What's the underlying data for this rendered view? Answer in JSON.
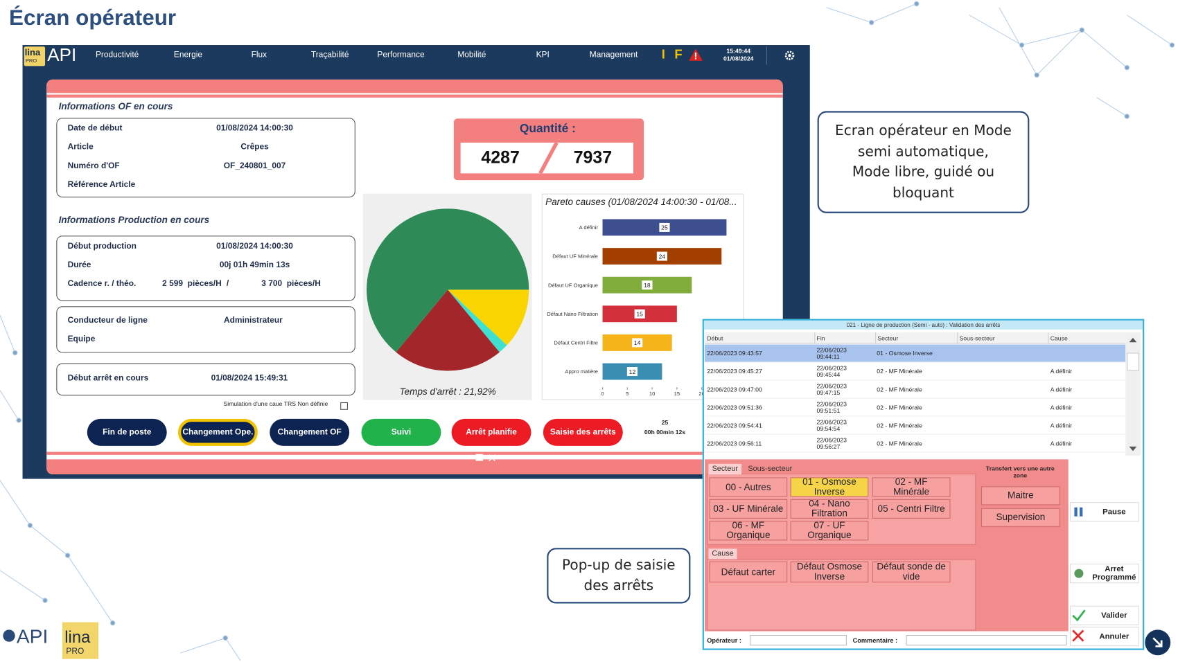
{
  "slide_title": "Écran opérateur",
  "app": {
    "logo": {
      "brand": "lina",
      "sub": "PRO",
      "name": "API"
    },
    "nav": [
      "Productivité",
      "Energie",
      "Flux",
      "Traçabilité",
      "Performance",
      "Mobilité",
      "KPI",
      "Management"
    ],
    "status_icons": [
      "I",
      "F"
    ],
    "clock": {
      "time": "15:49:44",
      "date": "01/08/2024"
    },
    "of_info": {
      "title": "Informations OF en cours",
      "rows": [
        [
          "Date de début",
          "01/08/2024 14:00:30"
        ],
        [
          "Article",
          "Crêpes"
        ],
        [
          "Numéro d'OF",
          "OF_240801_007"
        ],
        [
          "Référence Article"
        ]
      ]
    },
    "production_info": {
      "title": "Informations Production en cours",
      "rows": [
        [
          "Début production",
          "01/08/2024 14:00:30"
        ],
        [
          "Durée",
          "00j 01h 49min 13s"
        ]
      ],
      "cadence": {
        "label": "Cadence r. / théo.",
        "real": "2 599  pièces/H",
        "sep": "/",
        "theo": "3 700  pièces/H"
      }
    },
    "operator_info": {
      "rows": [
        [
          "Conducteur de ligne",
          "Administrateur"
        ],
        [
          "Equipe"
        ]
      ]
    },
    "stop_info": {
      "rows": [
        [
          "Début arrêt en cours",
          "01/08/2024 15:49:31"
        ]
      ]
    },
    "simulation_label": "Simulation d'une caue TRS Non définie",
    "quantity": {
      "label": "Quantité :",
      "values": [
        4287,
        7937
      ]
    },
    "pie": {
      "caption": "Temps d'arrêt : 21,92%",
      "values": [
        12,
        2,
        22,
        64
      ],
      "colors": [
        "#f9d400",
        "#3fe0d0",
        "#a3262a",
        "#2e8b57"
      ]
    },
    "pareto": {
      "title": "Pareto causes (01/08/2024 14:00:30 - 01/08...",
      "categories": [
        "A définir",
        "Défaut UF Minérale",
        "Défaut UF Organique",
        "Défaut Nano Filtration",
        "Défaut Centri Filtre",
        "Appro matière"
      ],
      "values": [
        25,
        24,
        18,
        15,
        14,
        12
      ],
      "colors": [
        "#3e4f8f",
        "#a33f00",
        "#80ad3b",
        "#d2303b",
        "#f6b41b",
        "#3a8eb2"
      ],
      "xlim": [
        0,
        25
      ],
      "xticks": [
        0,
        5,
        10,
        15,
        20
      ]
    },
    "buttons": [
      {
        "label": "Fin de poste",
        "color": "#0d2352"
      },
      {
        "label": "Changement Ope.",
        "color": "#0d2352",
        "border": "#f2c200"
      },
      {
        "label": "Changement OF",
        "color": "#0d2352"
      },
      {
        "label": "Suivi",
        "color": "#21b24b"
      },
      {
        "label": "Arrêt planifie",
        "color": "#ec1b24"
      },
      {
        "label": "Saisie des arrêts",
        "color": "#ec1b24"
      }
    ],
    "counter": {
      "count": "25",
      "duration": "00h 00min 12s"
    }
  },
  "callouts": [
    {
      "lines": [
        "Ecran opérateur en Mode",
        "semi automatique,",
        "Mode libre, guidé ou",
        "bloquant"
      ]
    },
    {
      "lines": [
        "Pop-up de saisie",
        "des arrêts"
      ]
    }
  ],
  "popup": {
    "title": "021 - Ligne de production (Semi - auto) : Validation des arrêts",
    "columns": [
      "Début",
      "Fin",
      "Secteur",
      "Sous-secteur",
      "Cause"
    ],
    "rows": [
      {
        "debut": "22/06/2023 09:43:57",
        "fin": "22/06/2023 09:44:11",
        "secteur": "01 - Osmose Inverse"
      },
      {
        "debut": "22/06/2023 09:45:27",
        "fin": "22/06/2023 09:45:44",
        "secteur": "02 - MF Minérale",
        "cause": "A définir"
      },
      {
        "debut": "22/06/2023 09:47:00",
        "fin": "22/06/2023 09:47:15",
        "secteur": "02 - MF Minérale",
        "cause": "A définir"
      },
      {
        "debut": "22/06/2023 09:51:36",
        "fin": "22/06/2023 09:51:51",
        "secteur": "02 - MF Minérale",
        "cause": "A définir"
      },
      {
        "debut": "22/06/2023 09:54:41",
        "fin": "22/06/2023 09:54:54",
        "secteur": "02 - MF Minérale",
        "cause": "A définir"
      },
      {
        "debut": "22/06/2023 09:56:11",
        "fin": "22/06/2023 09:56:27",
        "secteur": "02 - MF Minérale",
        "cause": "A définir"
      }
    ],
    "sector_tabs": [
      "Secteur",
      "Sous-secteur"
    ],
    "sectors": [
      {
        "label": "00 - Autres"
      },
      {
        "label": "01 - Osmose Inverse",
        "selected": true
      },
      {
        "label": "02 - MF Minérale"
      },
      {
        "label": "03 - UF Minérale"
      },
      {
        "label": "04 - Nano Filtration"
      },
      {
        "label": "05 - Centri Filtre"
      },
      {
        "label": "06 - MF Organique"
      },
      {
        "label": "07 - UF Organique"
      }
    ],
    "transfer": {
      "title": "Transfert vers une autre zone",
      "zones": [
        "Maitre",
        "Supervision"
      ]
    },
    "cause_tab": "Cause",
    "causes": [
      "Défaut carter",
      "Défaut Osmose Inverse",
      "Défaut sonde de vide"
    ],
    "actions": [
      "Pause",
      "Arret Programmé",
      "Valider",
      "Annuler"
    ],
    "fields": [
      "Opérateur :",
      "Commentaire :"
    ]
  },
  "footer_logo": {
    "name": "API",
    "brand": "lina",
    "sub": "PRO"
  }
}
